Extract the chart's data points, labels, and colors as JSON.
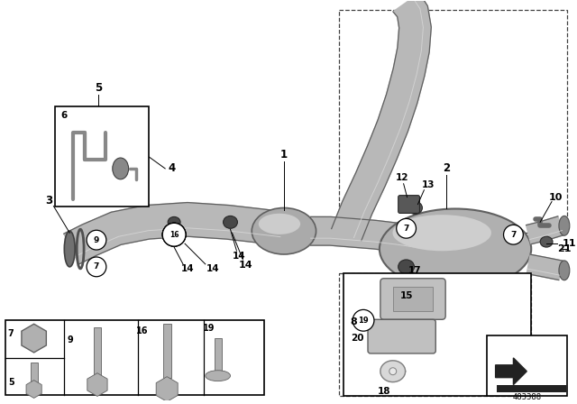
{
  "bg_color": "#ffffff",
  "part_number": "483388",
  "pipe_color": "#b8b8b8",
  "pipe_edge": "#606060",
  "pipe_highlight": "#d8d8d8",
  "pipe_shadow": "#888888"
}
